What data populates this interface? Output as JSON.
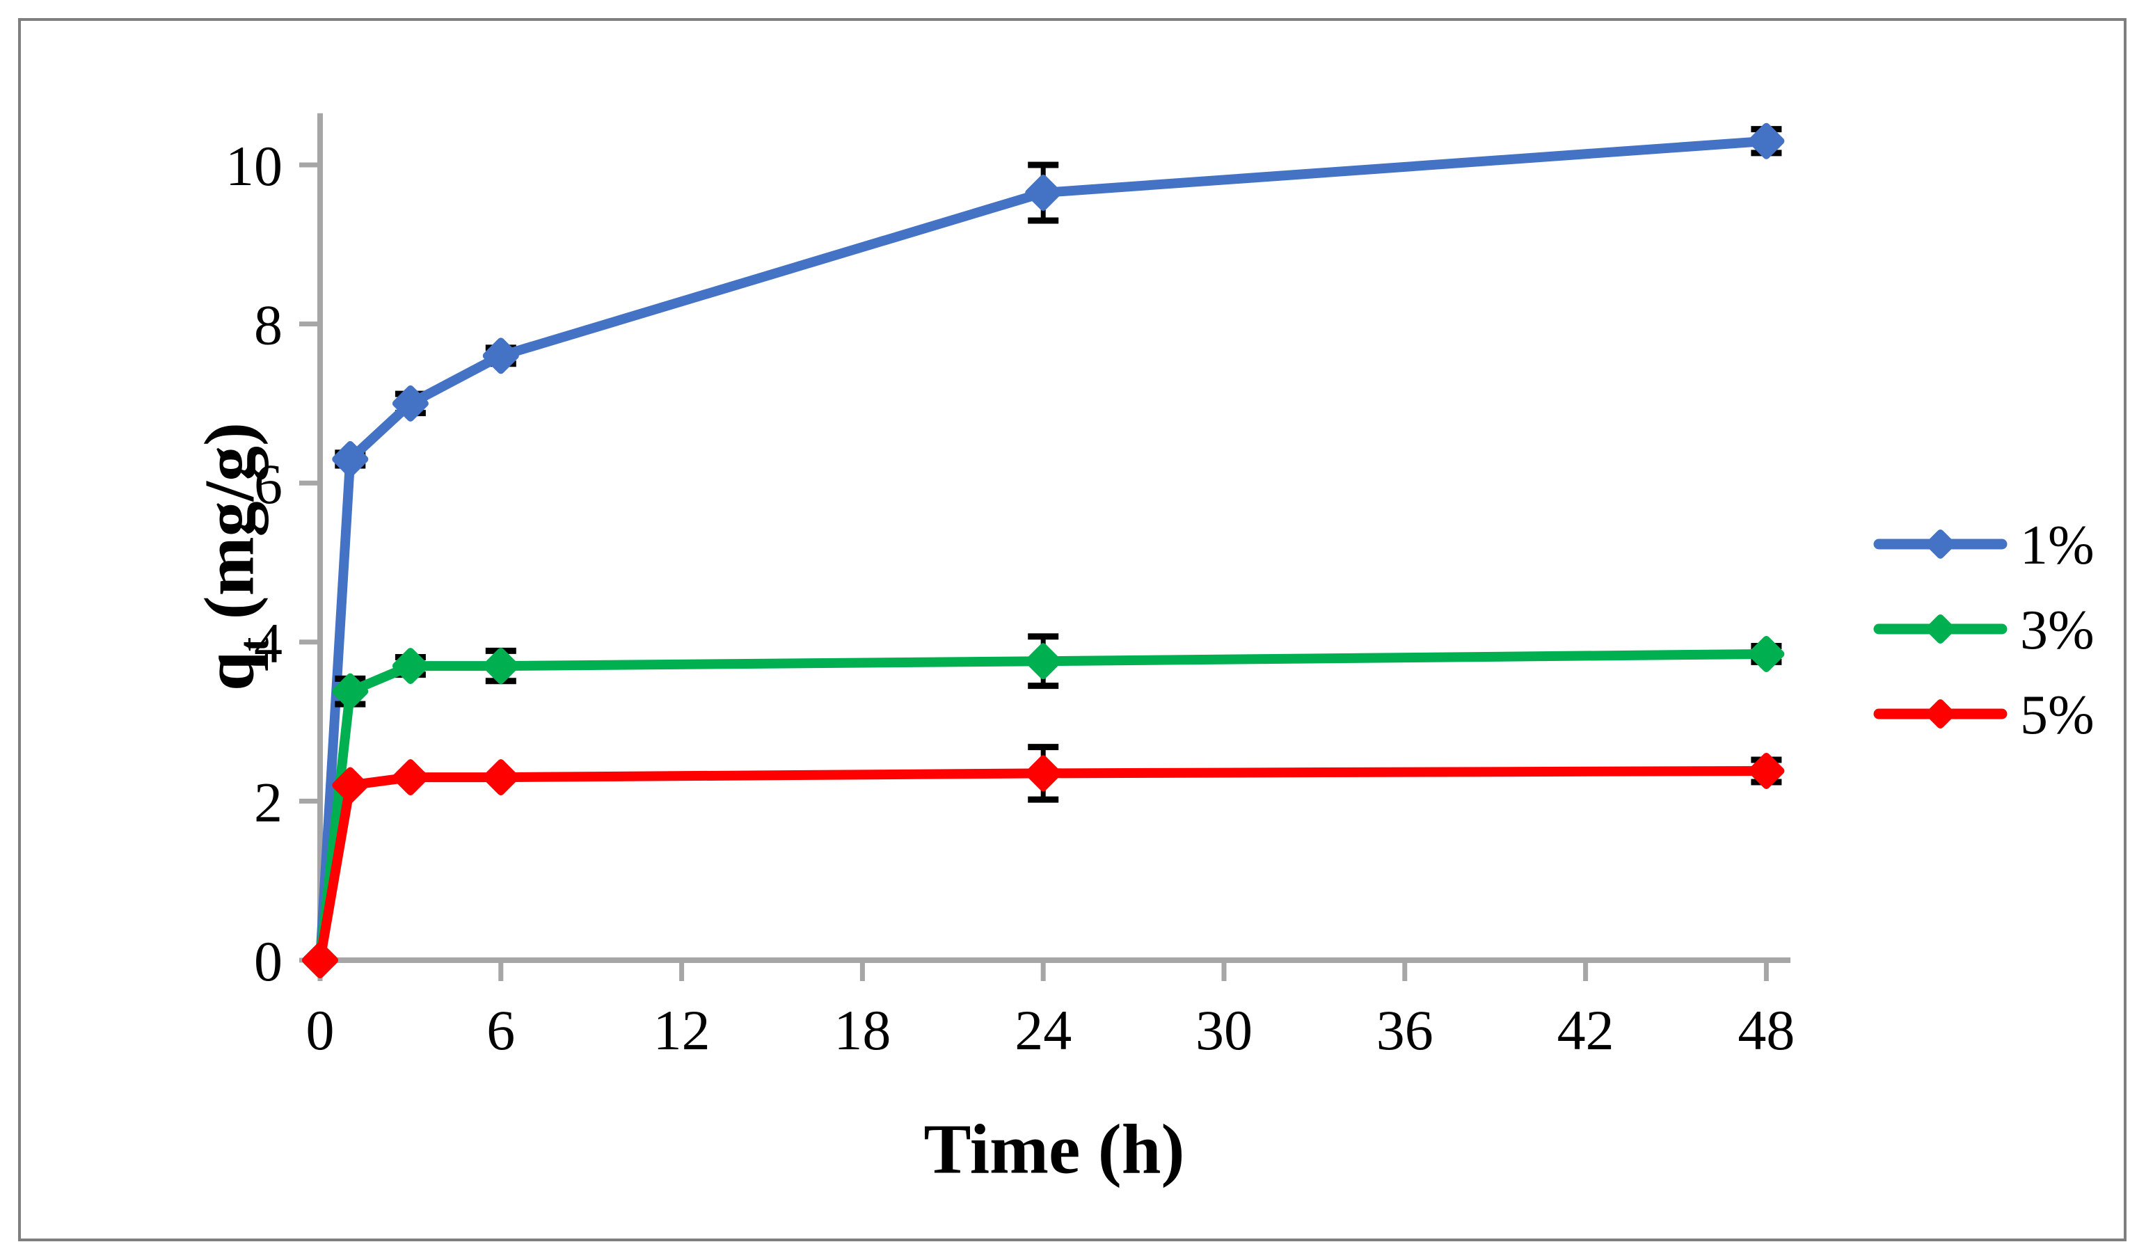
{
  "figure": {
    "background": "#FFFFFF",
    "border_color": "#7F7F7F"
  },
  "chart_data": {
    "type": "line",
    "title": "",
    "xlabel": "Time (h)",
    "ylabel": {
      "base": "q",
      "sub": "t",
      "rest": " (mg/g)"
    },
    "x_ticks": [
      0,
      6,
      12,
      18,
      24,
      30,
      36,
      42,
      48
    ],
    "y_ticks": [
      0,
      2,
      4,
      6,
      8,
      10
    ],
    "xlim": [
      0,
      48.8
    ],
    "ylim": [
      0,
      10.65
    ],
    "grid": false,
    "axis_color": "#A6A6A6",
    "tick_color": "#A6A6A6",
    "error_bar_color": "#000000",
    "legend_position": "right-middle",
    "marker": "diamond",
    "x": [
      0,
      1,
      3,
      6,
      24,
      48
    ],
    "series": [
      {
        "name": "1%",
        "color": "#4472C4",
        "values": [
          0,
          6.3,
          7.0,
          7.6,
          9.65,
          10.3
        ],
        "errors": [
          0,
          0.08,
          0.12,
          0.1,
          0.35,
          0.15
        ]
      },
      {
        "name": "3%",
        "color": "#00B050",
        "values": [
          0,
          3.38,
          3.7,
          3.7,
          3.76,
          3.85
        ],
        "errors": [
          0,
          0.16,
          0.11,
          0.19,
          0.31,
          0.1
        ]
      },
      {
        "name": "5%",
        "color": "#FF0000",
        "values": [
          0,
          2.2,
          2.3,
          2.3,
          2.35,
          2.38
        ],
        "errors": [
          0,
          0,
          0,
          0,
          0.33,
          0.14
        ]
      }
    ]
  }
}
